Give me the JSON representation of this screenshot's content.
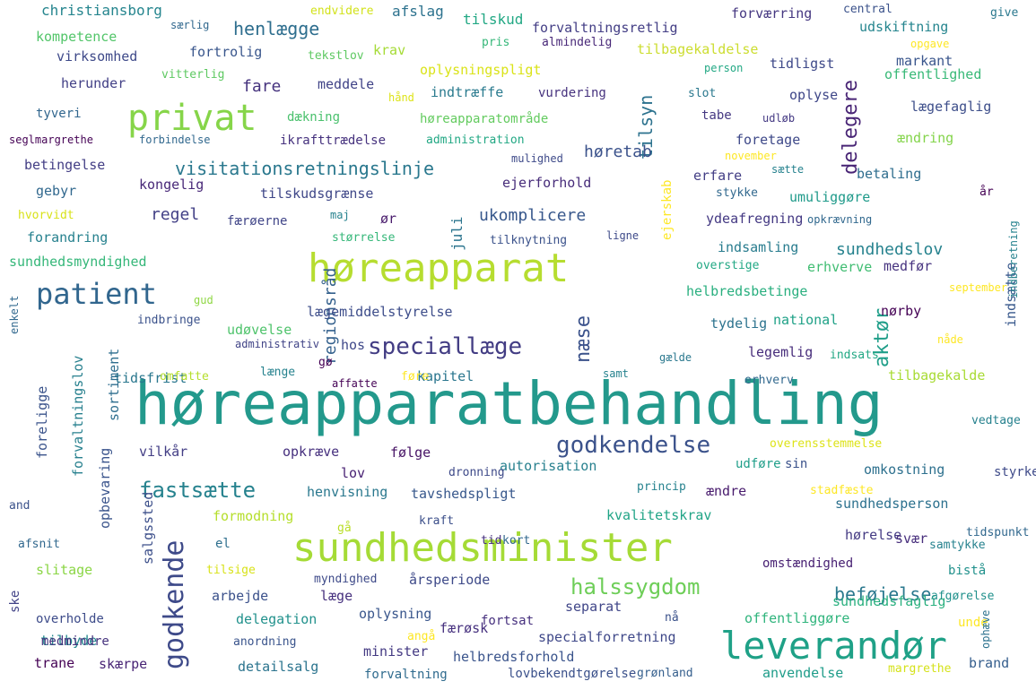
{
  "words": [
    {
      "text": "høreapparatbehandling",
      "color": "#23998c"
    },
    {
      "text": "høreapparat",
      "color": "#b6dd30"
    },
    {
      "text": "sundhedsminister",
      "color": "#a5db36"
    },
    {
      "text": "leverandør",
      "color": "#1fa187"
    },
    {
      "text": "privat",
      "color": "#86d549"
    },
    {
      "text": "patient",
      "color": "#31668e"
    },
    {
      "text": "godkende",
      "color": "#3e4a89"
    },
    {
      "text": "speciallæge",
      "color": "#433d84"
    },
    {
      "text": "godkendelse",
      "color": "#3b528b"
    },
    {
      "text": "fastsætte",
      "color": "#26828e"
    },
    {
      "text": "halssygdom",
      "color": "#6ece58"
    },
    {
      "text": "visitationsretningslinje",
      "color": "#2a788e"
    },
    {
      "text": "tilsyn",
      "color": "#2c728e"
    },
    {
      "text": "delegere",
      "color": "#482475"
    },
    {
      "text": "aktør",
      "color": "#1f9e89"
    },
    {
      "text": "næse",
      "color": "#3b528b"
    },
    {
      "text": "henlægge",
      "color": "#2e6e8e"
    },
    {
      "text": "beføjelse",
      "color": "#2a788e"
    },
    {
      "text": "fare",
      "color": "#46337e"
    },
    {
      "text": "regel",
      "color": "#424086"
    },
    {
      "text": "ukomplicere",
      "color": "#38588c"
    },
    {
      "text": "høretab",
      "color": "#3b528b"
    },
    {
      "text": "regionsråd",
      "color": "#34618d"
    },
    {
      "text": "sundhedslov",
      "color": "#26828e"
    },
    {
      "text": "christiansborg",
      "color": "#25858e"
    },
    {
      "text": "afslag",
      "color": "#2c728e"
    },
    {
      "text": "tilskud",
      "color": "#22a884"
    },
    {
      "text": "forvaltningsretlig",
      "color": "#433e85"
    },
    {
      "text": "forværring",
      "color": "#453781"
    },
    {
      "text": "udskiftning",
      "color": "#25858e"
    },
    {
      "text": "kompetence",
      "color": "#52c569"
    },
    {
      "text": "fortrolig",
      "color": "#39568c"
    },
    {
      "text": "krav",
      "color": "#a5db36"
    },
    {
      "text": "tilbagekaldelse",
      "color": "#ccdd30"
    },
    {
      "text": "tidligst",
      "color": "#3e4989"
    },
    {
      "text": "markant",
      "color": "#39558c"
    },
    {
      "text": "virksomhed",
      "color": "#3e4989"
    },
    {
      "text": "oplysningspligt",
      "color": "#dae319"
    },
    {
      "text": "offentlighed",
      "color": "#38b977"
    },
    {
      "text": "herunder",
      "color": "#424086"
    },
    {
      "text": "meddele",
      "color": "#404387"
    },
    {
      "text": "indtræffe",
      "color": "#297a8e"
    },
    {
      "text": "vurdering",
      "color": "#46327e"
    },
    {
      "text": "oplyse",
      "color": "#3f4788"
    },
    {
      "text": "lægefaglig",
      "color": "#3d4e8a"
    },
    {
      "text": "tyveri",
      "color": "#31668e"
    },
    {
      "text": "dækning",
      "color": "#4ac16d"
    },
    {
      "text": "høreapparatområde",
      "color": "#63cb5f"
    },
    {
      "text": "tabe",
      "color": "#453882"
    },
    {
      "text": "foretage",
      "color": "#3e4989"
    },
    {
      "text": "ændring",
      "color": "#84d44b"
    },
    {
      "text": "ikrafttrædelse",
      "color": "#46327e"
    },
    {
      "text": "betingelse",
      "color": "#433e85"
    },
    {
      "text": "erfare",
      "color": "#433e85"
    },
    {
      "text": "betaling",
      "color": "#2e6d8e"
    },
    {
      "text": "gebyr",
      "color": "#31688e"
    },
    {
      "text": "kongelig",
      "color": "#482878"
    },
    {
      "text": "ejerforhold",
      "color": "#472c7a"
    },
    {
      "text": "umuliggøre",
      "color": "#1f9a8a"
    },
    {
      "text": "tilskudsgrænse",
      "color": "#3f4788"
    },
    {
      "text": "færøerne",
      "color": "#404588"
    },
    {
      "text": "ør",
      "color": "#481a6c"
    },
    {
      "text": "juli",
      "color": "#2b748e"
    },
    {
      "text": "ejerskab",
      "color": "#fde725"
    },
    {
      "text": "ydeafregning",
      "color": "#443983"
    },
    {
      "text": "forandring",
      "color": "#26818e"
    },
    {
      "text": "sundhedsmyndighed",
      "color": "#35b779"
    },
    {
      "text": "indsamling",
      "color": "#287c8e"
    },
    {
      "text": "erhverve",
      "color": "#40bd72"
    },
    {
      "text": "medfør",
      "color": "#46337f"
    },
    {
      "text": "helbredsbetinge",
      "color": "#29af7f"
    },
    {
      "text": "lægemiddelstyrelse",
      "color": "#3d4d8a"
    },
    {
      "text": "indsætte",
      "color": "#38588c"
    },
    {
      "text": "tydelig",
      "color": "#2c738e"
    },
    {
      "text": "national",
      "color": "#1fa187"
    },
    {
      "text": "nørby",
      "color": "#440154"
    },
    {
      "text": "tidsfrist",
      "color": "#2a778e"
    },
    {
      "text": "udøvelse",
      "color": "#4ec36b"
    },
    {
      "text": "hos",
      "color": "#3f4889"
    },
    {
      "text": "legemlig",
      "color": "#472d7b"
    },
    {
      "text": "forvaltningslov",
      "color": "#27808e"
    },
    {
      "text": "sortiment",
      "color": "#2e6e8e"
    },
    {
      "text": "tilbagekalde",
      "color": "#a8db34"
    },
    {
      "text": "kapitel",
      "color": "#2a768e"
    },
    {
      "text": "foreligge",
      "color": "#3a538b"
    },
    {
      "text": "vilkår",
      "color": "#433e85"
    },
    {
      "text": "opkræve",
      "color": "#46307e"
    },
    {
      "text": "følge",
      "color": "#471365"
    },
    {
      "text": "autorisation",
      "color": "#27808e"
    },
    {
      "text": "omkostning",
      "color": "#2d708e"
    },
    {
      "text": "opbevaring",
      "color": "#3a548c"
    },
    {
      "text": "lov",
      "color": "#482173"
    },
    {
      "text": "henvisning",
      "color": "#2a788e"
    },
    {
      "text": "tavshedspligt",
      "color": "#38588c"
    },
    {
      "text": "ændre",
      "color": "#481b6d"
    },
    {
      "text": "sundhedsperson",
      "color": "#2c718e"
    },
    {
      "text": "salgssted",
      "color": "#3c4f8a"
    },
    {
      "text": "formodning",
      "color": "#b5de2b"
    },
    {
      "text": "kvalitetskrav",
      "color": "#20a486"
    },
    {
      "text": "hørelse",
      "color": "#443a83"
    },
    {
      "text": "el",
      "color": "#2e6f8e"
    },
    {
      "text": "svær",
      "color": "#472e7c"
    },
    {
      "text": "slitage",
      "color": "#8bd646"
    },
    {
      "text": "årsperiode",
      "color": "#3e4a89"
    },
    {
      "text": "bistå",
      "color": "#21918c"
    },
    {
      "text": "arbejde",
      "color": "#3b518b"
    },
    {
      "text": "læge",
      "color": "#46307e"
    },
    {
      "text": "oplysning",
      "color": "#39568c"
    },
    {
      "text": "separat",
      "color": "#404688"
    },
    {
      "text": "sundhedsfaglig",
      "color": "#2ab07f"
    },
    {
      "text": "færøsk",
      "color": "#46307e"
    },
    {
      "text": "delegation",
      "color": "#21918c"
    },
    {
      "text": "offentliggøre",
      "color": "#2fb47c"
    },
    {
      "text": "tilbyde",
      "color": "#23898e"
    },
    {
      "text": "minister",
      "color": "#443a83"
    },
    {
      "text": "specialforretning",
      "color": "#3f4889"
    },
    {
      "text": "trane",
      "color": "#440154"
    },
    {
      "text": "skærpe",
      "color": "#482475"
    },
    {
      "text": "detailsalg",
      "color": "#2b748e"
    },
    {
      "text": "helbredsforhold",
      "color": "#3a548c"
    },
    {
      "text": "anvendelse",
      "color": "#1e9c89"
    },
    {
      "text": "brand",
      "color": "#355e8d"
    },
    {
      "text": "overholde",
      "color": "#3e4c8a"
    },
    {
      "text": "fortsat",
      "color": "#46307e"
    },
    {
      "text": "forvaltning",
      "color": "#2f6b8e"
    },
    {
      "text": "lovbekendtgørelse",
      "color": "#3b518b"
    },
    {
      "text": "grønland",
      "color": "#355f8d"
    },
    {
      "text": "ske",
      "color": "#414287"
    },
    {
      "text": "medmindre",
      "color": "#46337e"
    },
    {
      "text": "anordning",
      "color": "#3a548c"
    },
    {
      "text": "kort",
      "color": "#31688e"
    },
    {
      "text": "tid",
      "color": "#46307e"
    },
    {
      "text": "kraft",
      "color": "#3c4f8a"
    },
    {
      "text": "dronning",
      "color": "#3e4a89"
    },
    {
      "text": "princip",
      "color": "#26828e"
    },
    {
      "text": "gå",
      "color": "#bade28"
    },
    {
      "text": "omstændighed",
      "color": "#482173"
    },
    {
      "text": "udføre",
      "color": "#1f9e89"
    },
    {
      "text": "sin",
      "color": "#3b528b"
    },
    {
      "text": "overensstemmelse",
      "color": "#dde318"
    },
    {
      "text": "styrke",
      "color": "#3e4a89"
    },
    {
      "text": "vedtage",
      "color": "#26818e"
    },
    {
      "text": "stadfæste",
      "color": "#fde725"
    },
    {
      "text": "tidspunkt",
      "color": "#31688e"
    },
    {
      "text": "and",
      "color": "#3b528b"
    },
    {
      "text": "afsnit",
      "color": "#31688e"
    },
    {
      "text": "tilsige",
      "color": "#d8e219"
    },
    {
      "text": "myndighed",
      "color": "#3e4a89"
    },
    {
      "text": "samtykke",
      "color": "#26828e"
    },
    {
      "text": "afgørelse",
      "color": "#21918c"
    },
    {
      "text": "unde",
      "color": "#fde725"
    },
    {
      "text": "margrethe",
      "color": "#d5e21a"
    },
    {
      "text": "angå",
      "color": "#fde725"
    },
    {
      "text": "nå",
      "color": "#3b528b"
    },
    {
      "text": "ophæve",
      "color": "#2c728e"
    },
    {
      "text": "endvidere",
      "color": "#d2e21b"
    },
    {
      "text": "central",
      "color": "#3b528b"
    },
    {
      "text": "give",
      "color": "#2a788e"
    },
    {
      "text": "særlig",
      "color": "#31688e"
    },
    {
      "text": "tekstlov",
      "color": "#5ec962"
    },
    {
      "text": "almindelig",
      "color": "#482878"
    },
    {
      "text": "pris",
      "color": "#35b779"
    },
    {
      "text": "opgave",
      "color": "#fde725"
    },
    {
      "text": "person",
      "color": "#22a884"
    },
    {
      "text": "vitterlig",
      "color": "#5ec962"
    },
    {
      "text": "hånd",
      "color": "#dde318"
    },
    {
      "text": "slot",
      "color": "#2a788e"
    },
    {
      "text": "udløb",
      "color": "#443983"
    },
    {
      "text": "seglmargrethe",
      "color": "#440154"
    },
    {
      "text": "forbindelse",
      "color": "#31688e"
    },
    {
      "text": "administration",
      "color": "#22a884"
    },
    {
      "text": "mulighed",
      "color": "#3e4a89"
    },
    {
      "text": "november",
      "color": "#fde725"
    },
    {
      "text": "sætte",
      "color": "#26828e"
    },
    {
      "text": "stykke",
      "color": "#31688e"
    },
    {
      "text": "år",
      "color": "#440154"
    },
    {
      "text": "hvorvidt",
      "color": "#d8e219"
    },
    {
      "text": "maj",
      "color": "#26828e"
    },
    {
      "text": "opkrævning",
      "color": "#31688e"
    },
    {
      "text": "størrelse",
      "color": "#35b779"
    },
    {
      "text": "tilknytning",
      "color": "#3b528b"
    },
    {
      "text": "ligne",
      "color": "#3e4a89"
    },
    {
      "text": "overstige",
      "color": "#22a884"
    },
    {
      "text": "september",
      "color": "#fde725"
    },
    {
      "text": "gud",
      "color": "#8fd744"
    },
    {
      "text": "enkelt",
      "color": "#31688e"
    },
    {
      "text": "indbringe",
      "color": "#3b528b"
    },
    {
      "text": "administrativ",
      "color": "#414487"
    },
    {
      "text": "gø",
      "color": "#440154"
    },
    {
      "text": "nåde",
      "color": "#fde725"
    },
    {
      "text": "indberetning",
      "color": "#26828e"
    },
    {
      "text": "omfatte",
      "color": "#b5de2b"
    },
    {
      "text": "længe",
      "color": "#26828e"
    },
    {
      "text": "affatte",
      "color": "#440154"
    },
    {
      "text": "føre",
      "color": "#fde725"
    },
    {
      "text": "gælde",
      "color": "#2a788e"
    },
    {
      "text": "indsats",
      "color": "#22a884"
    },
    {
      "text": "samt",
      "color": "#26828e"
    },
    {
      "text": "erhverv",
      "color": "#31688e"
    }
  ]
}
